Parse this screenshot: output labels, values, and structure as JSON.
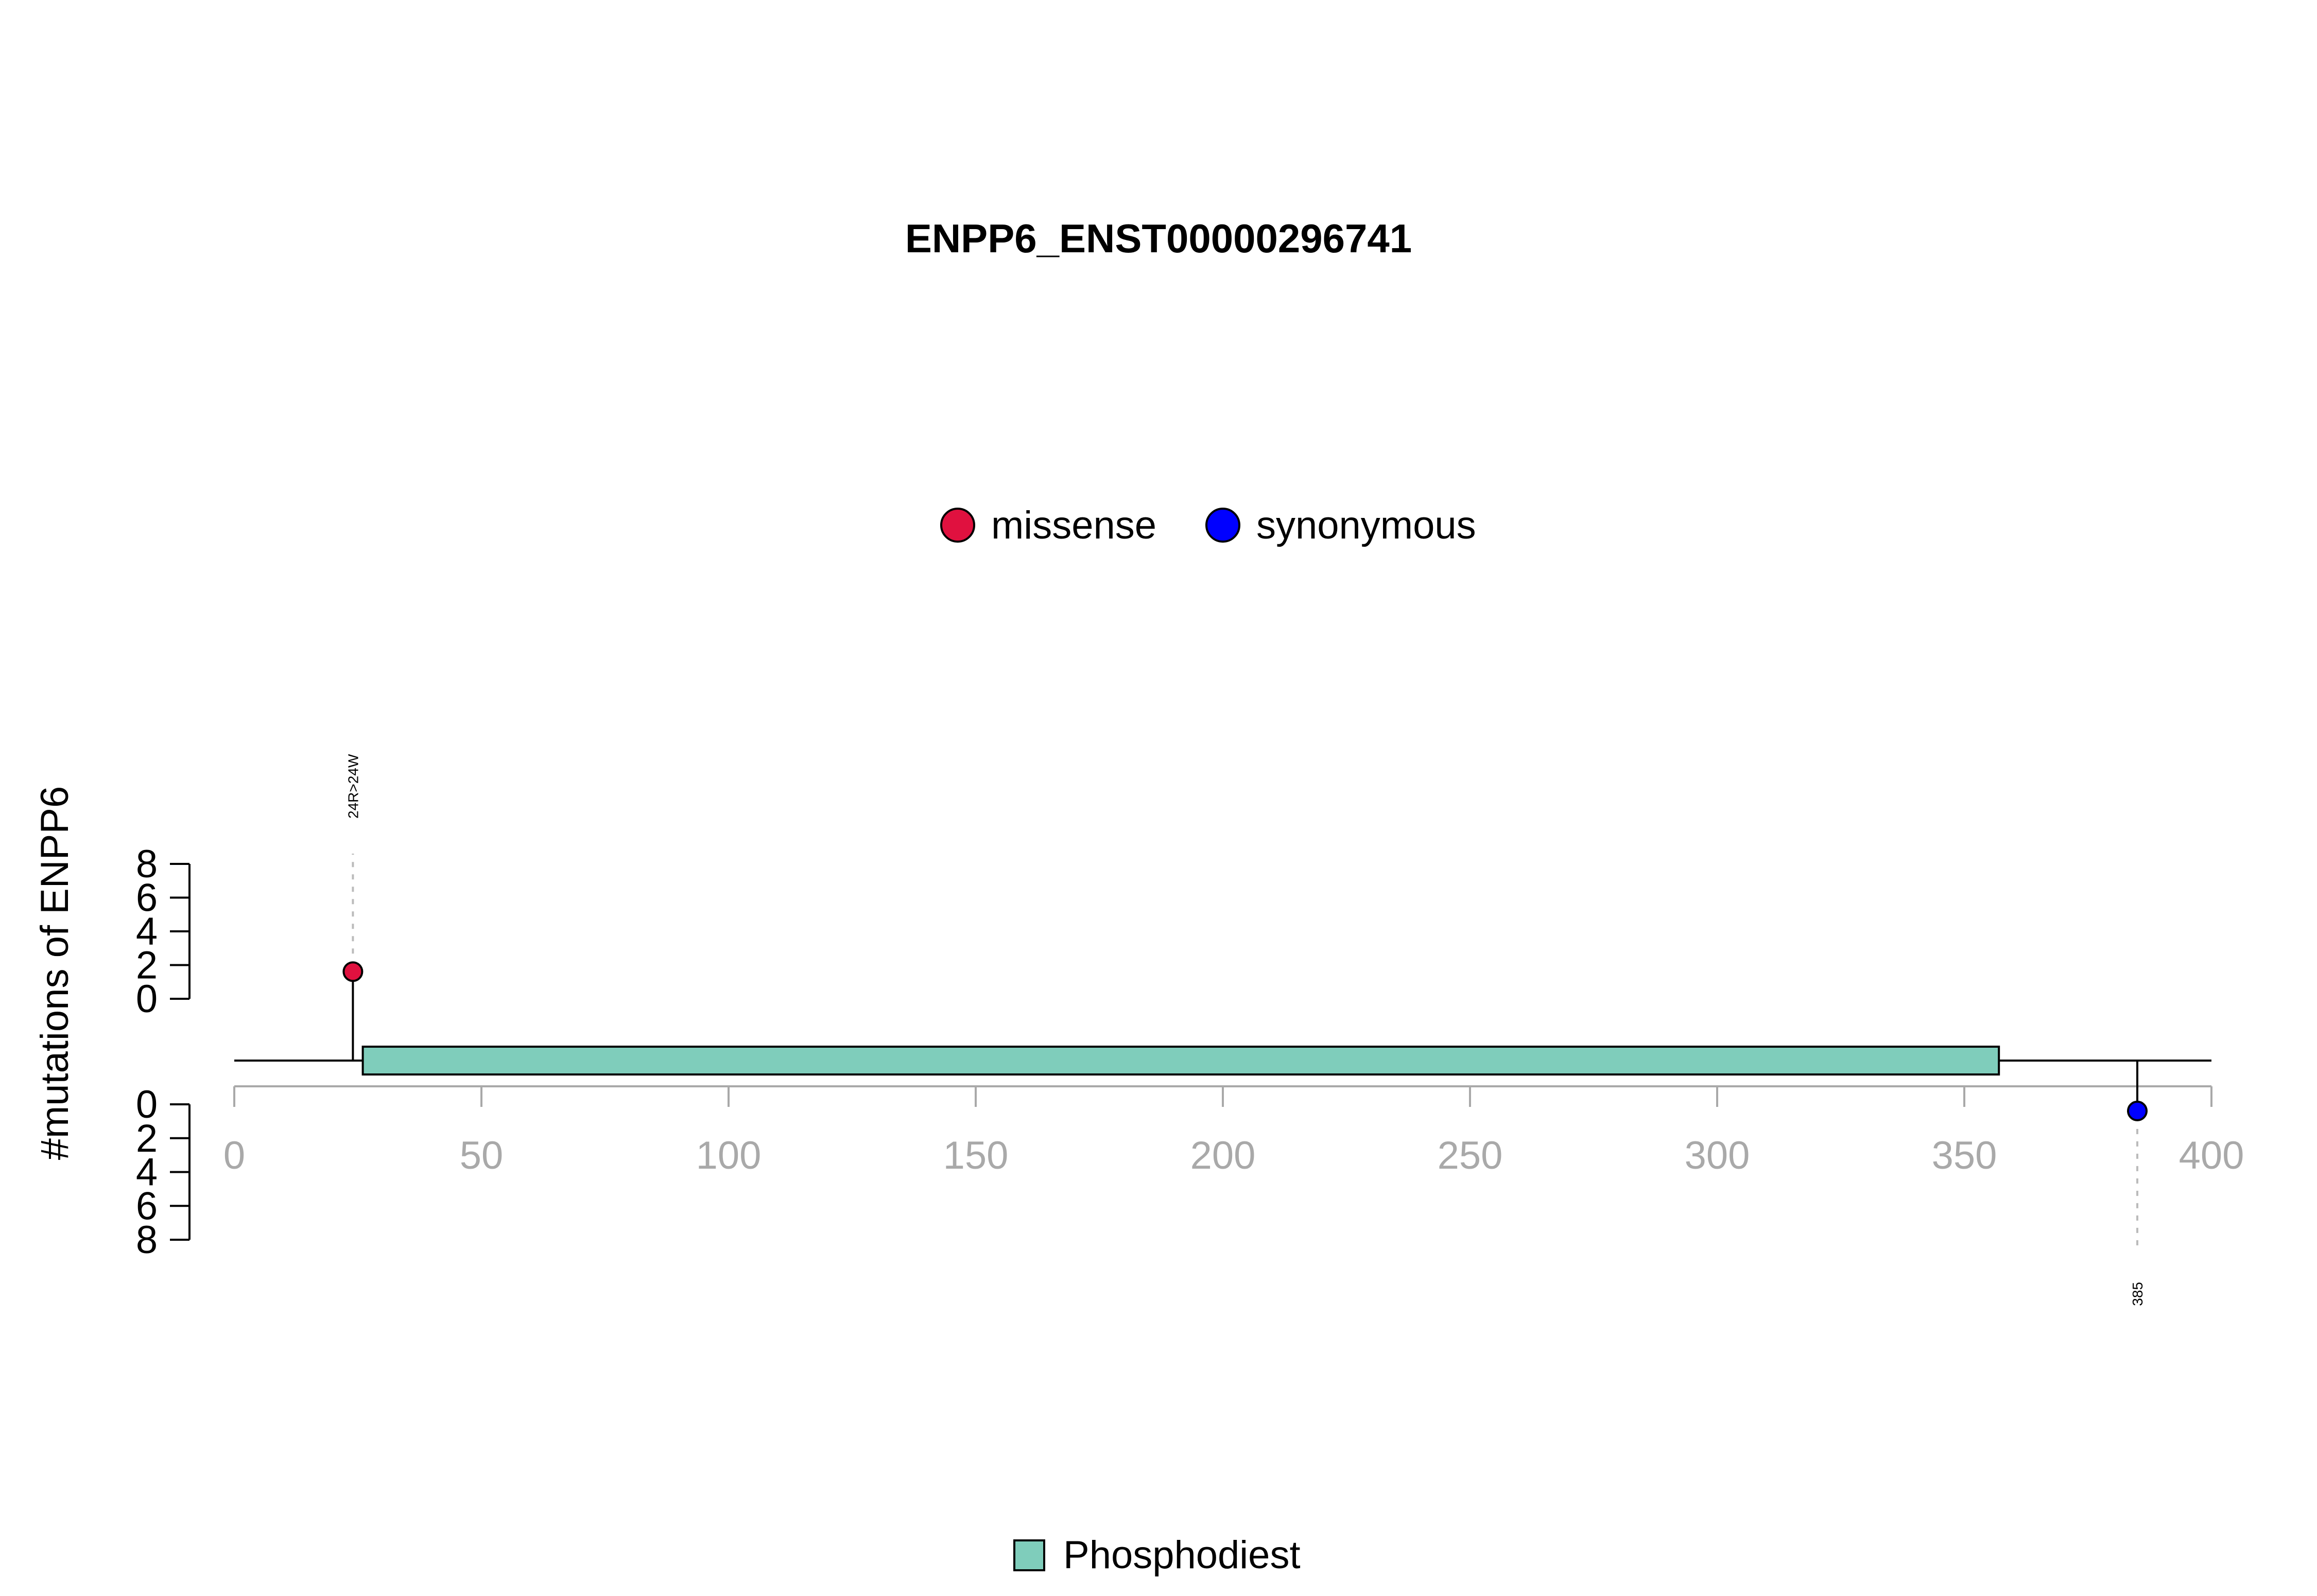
{
  "chart_data": {
    "type": "lollipop",
    "title": "ENPP6_ENST00000296741",
    "ylabel": "#mutations of ENPP6",
    "xlim": [
      0,
      400
    ],
    "x_ticks": [
      0,
      50,
      100,
      150,
      200,
      250,
      300,
      350,
      400
    ],
    "ylim_top": [
      0,
      8
    ],
    "ylim_bottom": [
      0,
      8
    ],
    "y_ticks": [
      0,
      2,
      4,
      6,
      8
    ],
    "protein_length": 400,
    "legend": [
      {
        "label": "missense",
        "color": "#E0113F"
      },
      {
        "label": "synonymous",
        "color": "#0000FF"
      }
    ],
    "mutations": [
      {
        "position": 24,
        "count": 1,
        "type": "missense",
        "label": "24R>24W",
        "side": "top",
        "color": "#E0113F"
      },
      {
        "position": 385,
        "count": 1,
        "type": "synonymous",
        "label": "385",
        "side": "bottom",
        "color": "#0000FF"
      }
    ],
    "domains": [
      {
        "name": "Phosphodiest",
        "start": 26,
        "end": 357,
        "color": "#7FCDBB"
      }
    ],
    "domain_legend_label": "Phosphodiest"
  }
}
